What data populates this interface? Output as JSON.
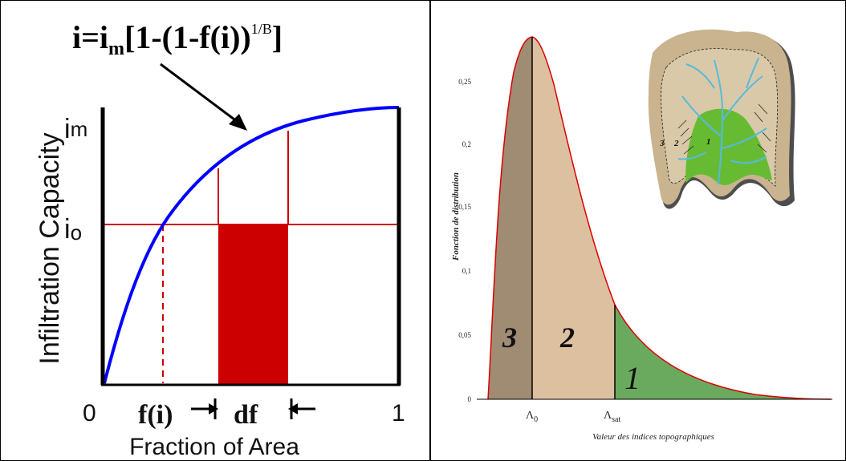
{
  "left": {
    "formula_prefix": "i=i",
    "formula_sub": "m",
    "formula_body": "[1-(1-f(i))",
    "formula_exp": "1/B",
    "formula_close": "]",
    "ylabel": "Infiltration Capacity",
    "im_main": "i",
    "im_sub": "m",
    "io_main": "i",
    "io_sub": "o",
    "x0": "0",
    "x1": "1",
    "fi_label": "f(i)",
    "df_label": "df",
    "xlabel": "Fraction of Area",
    "colors": {
      "curve": "#0000ff",
      "red": "#cc0000"
    }
  },
  "right": {
    "ylabel": "Fonction de distribution",
    "xlabel": "Valeur des indices topographiques",
    "yticks": [
      "0",
      "0,05",
      "0,1",
      "0,15",
      "0,2",
      "0,25"
    ],
    "lambda0_main": "Λ",
    "lambda0_sub": "0",
    "lambdasat_main": "Λ",
    "lambdasat_sub": "sat",
    "region1": "1",
    "region2": "2",
    "region3": "3",
    "map_label1": "1",
    "map_label2": "2",
    "map_label3": "3",
    "colors": {
      "zone3": "#a08b73",
      "zone2": "#dcc0a0",
      "zone1": "#6aaa5e",
      "curve": "#dd0000"
    }
  }
}
